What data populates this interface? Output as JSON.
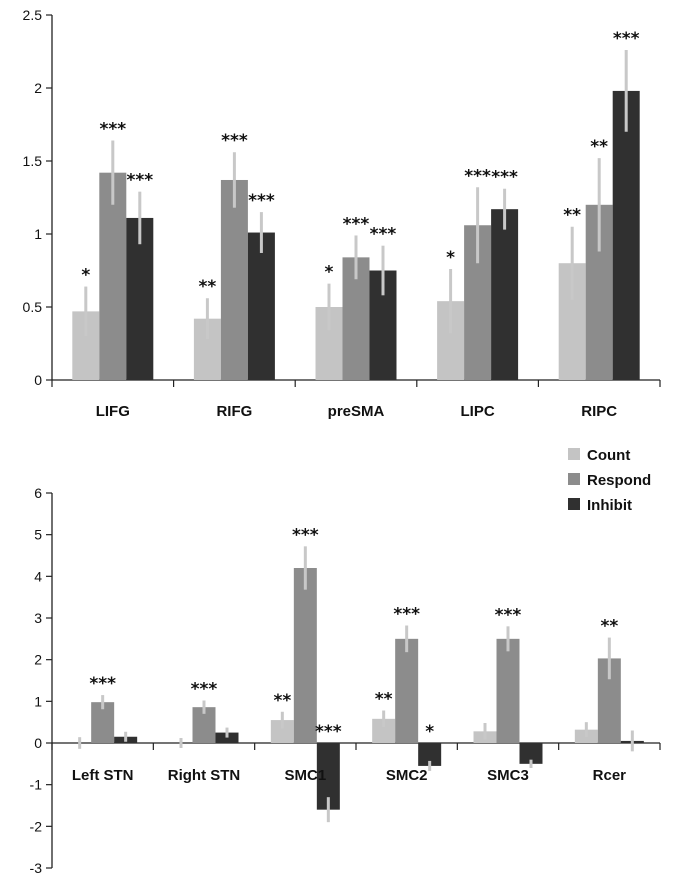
{
  "colors": {
    "count": "#c4c4c4",
    "respond": "#8c8c8c",
    "inhibit": "#303030",
    "error_bar": "#c8c8c8"
  },
  "legend": {
    "position": "top-right of lower chart",
    "items": [
      {
        "label": "Count",
        "color": "#c4c4c4"
      },
      {
        "label": "Respond",
        "color": "#8c8c8c"
      },
      {
        "label": "Inhibit",
        "color": "#303030"
      }
    ]
  },
  "chart_data": [
    {
      "type": "bar",
      "categories": [
        "LIFG",
        "RIFG",
        "preSMA",
        "LIPC",
        "RIPC"
      ],
      "series": [
        {
          "name": "Count",
          "values": [
            0.47,
            0.42,
            0.5,
            0.54,
            0.8
          ],
          "errors": [
            0.17,
            0.14,
            0.16,
            0.22,
            0.25
          ],
          "sig": [
            "*",
            "**",
            "*",
            "*",
            "**"
          ]
        },
        {
          "name": "Respond",
          "values": [
            1.42,
            1.37,
            0.84,
            1.06,
            1.2
          ],
          "errors": [
            0.22,
            0.19,
            0.15,
            0.26,
            0.32
          ],
          "sig": [
            "***",
            "***",
            "***",
            "***",
            "**"
          ]
        },
        {
          "name": "Inhibit",
          "values": [
            1.11,
            1.01,
            0.75,
            1.17,
            1.98
          ],
          "errors": [
            0.18,
            0.14,
            0.17,
            0.14,
            0.28
          ],
          "sig": [
            "***",
            "***",
            "***",
            "***",
            "***"
          ]
        }
      ],
      "ylim": [
        0,
        2.5
      ],
      "yticks": [
        "0",
        "0.5",
        "1",
        "1.5",
        "2",
        "2.5"
      ],
      "ytick_values": [
        0,
        0.5,
        1,
        1.5,
        2,
        2.5
      ],
      "grid": false
    },
    {
      "type": "bar",
      "categories": [
        "Left STN",
        "Right STN",
        "SMC1",
        "SMC2",
        "SMC3",
        "Rcer"
      ],
      "series": [
        {
          "name": "Count",
          "values": [
            0.0,
            0.0,
            0.55,
            0.58,
            0.28,
            0.32
          ],
          "errors": [
            0.14,
            0.12,
            0.2,
            0.2,
            0.2,
            0.18
          ],
          "sig": [
            "",
            "",
            "**",
            "**",
            "",
            ""
          ]
        },
        {
          "name": "Respond",
          "values": [
            0.98,
            0.86,
            4.2,
            2.5,
            2.5,
            2.03
          ],
          "errors": [
            0.17,
            0.16,
            0.52,
            0.32,
            0.3,
            0.5
          ],
          "sig": [
            "***",
            "***",
            "***",
            "***",
            "***",
            "**"
          ]
        },
        {
          "name": "Inhibit",
          "values": [
            0.15,
            0.25,
            -1.6,
            -0.55,
            -0.5,
            0.05
          ],
          "errors": [
            0.12,
            0.12,
            0.3,
            0.12,
            0.1,
            0.25
          ],
          "sig": [
            "",
            "",
            "***",
            "*",
            "",
            ""
          ]
        }
      ],
      "ylim": [
        -3,
        6
      ],
      "yticks": [
        "-3",
        "-2",
        "-1",
        "0",
        "1",
        "2",
        "3",
        "4",
        "5",
        "6"
      ],
      "ytick_values": [
        -3,
        -2,
        -1,
        0,
        1,
        2,
        3,
        4,
        5,
        6
      ],
      "grid": false
    }
  ]
}
